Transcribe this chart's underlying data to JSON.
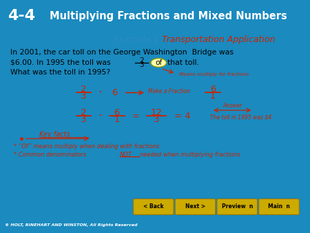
{
  "header_bg": "#0a1a3a",
  "header_text_color": "#ffffff",
  "slide_bg": "#1a8abf",
  "content_bg": "#ffffff",
  "example_label_color": "#2e8bc0",
  "example_title_color": "#cc2200",
  "body_text_color": "#000000",
  "red_text_color": "#cc2200",
  "footer_bar_bg": "#000000",
  "footer_text": "© HOLT, RINEHART AND WINSTON, All Rights Reserved",
  "footer_color": "#ffffff",
  "nav_button_bg": "#ccaa00",
  "nav_buttons": [
    "< Back",
    "Next >",
    "Preview  n",
    "Main  n"
  ]
}
